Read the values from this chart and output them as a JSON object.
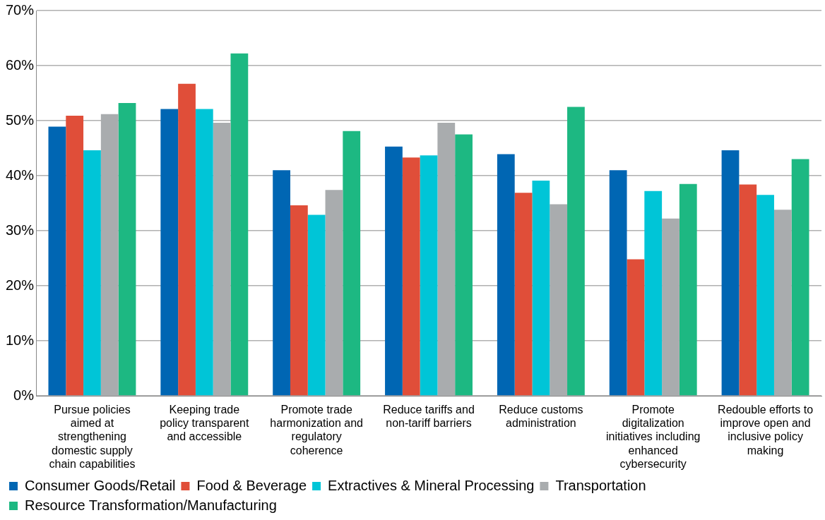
{
  "chart_data": {
    "type": "bar",
    "categories": [
      "Pursue policies aimed at strengthening domestic supply chain capabilities",
      "Keeping trade policy transparent and accessible",
      "Promote trade harmonization and regulatory coherence",
      "Reduce tariffs and non-tariff barriers",
      "Reduce customs administration",
      "Promote digitalization initiatives including enhanced cybersecurity",
      "Redouble efforts to improve open and inclusive policy making"
    ],
    "series": [
      {
        "name": "Consumer Goods/Retail",
        "color": "#0066b3",
        "values": [
          48.9,
          52.1,
          41.0,
          45.3,
          43.9,
          41.0,
          44.6
        ]
      },
      {
        "name": "Food & Beverage",
        "color": "#e04e39",
        "values": [
          50.9,
          56.7,
          34.6,
          43.3,
          36.9,
          24.8,
          38.4
        ]
      },
      {
        "name": "Extractives & Mineral Processing",
        "color": "#00c5d7",
        "values": [
          44.6,
          52.1,
          32.9,
          43.7,
          39.1,
          37.2,
          36.5
        ]
      },
      {
        "name": "Transportation",
        "color": "#a9acae",
        "values": [
          51.2,
          49.6,
          37.4,
          49.6,
          34.8,
          32.2,
          33.8
        ]
      },
      {
        "name": "Resource Transformation/Manufacturing",
        "color": "#1db882",
        "values": [
          53.2,
          62.2,
          48.1,
          47.5,
          52.5,
          38.5,
          43.0
        ]
      }
    ],
    "ylim": [
      0,
      70
    ],
    "yticks": [
      {
        "value": 0,
        "label": "0%"
      },
      {
        "value": 10,
        "label": "10%"
      },
      {
        "value": 20,
        "label": "20%"
      },
      {
        "value": 30,
        "label": "30%"
      },
      {
        "value": 40,
        "label": "40%"
      },
      {
        "value": 50,
        "label": "50%"
      },
      {
        "value": 60,
        "label": "60%"
      },
      {
        "value": 70,
        "label": "70%"
      }
    ],
    "grid": "y",
    "legend": "bottom"
  }
}
